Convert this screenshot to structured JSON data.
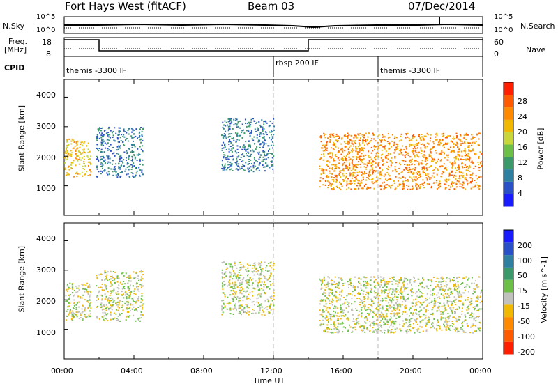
{
  "header": {
    "title": "Fort Hays West (fitACF)",
    "beam": "Beam 03",
    "date": "07/Dec/2014"
  },
  "summary": {
    "nsky_label": "N.Sky",
    "nsearch_label": "N.Search",
    "freq_label_1": "Freq.",
    "freq_label_2": "[MHz]",
    "nave_label": "Nave",
    "cpid_label": "CPID",
    "left_ticks_top": [
      "10^5",
      "10^0"
    ],
    "right_ticks_top": [
      "10^5",
      "10^0"
    ],
    "left_ticks_freq": [
      "18",
      "8"
    ],
    "right_ticks_nave": [
      "60",
      "0"
    ],
    "cpid_segments": [
      {
        "start_hour": 0,
        "label": "themis -3300 IF"
      },
      {
        "start_hour": 12,
        "label": "rbsp 200 IF"
      },
      {
        "start_hour": 18,
        "label": "themis -3300 IF"
      }
    ]
  },
  "chart_data": [
    {
      "type": "heatmap",
      "panel": "power",
      "ylabel": "Slant Range [km]",
      "yticks": [
        "1000",
        "2000",
        "3000",
        "4000"
      ],
      "ylim": [
        0,
        4600
      ],
      "xlim": [
        0,
        24
      ],
      "colorbar_label": "Power [dB]",
      "colorbar_ticks": [
        "28",
        "24",
        "20",
        "16",
        "12",
        "8",
        "4"
      ],
      "colors": [
        "#1a1aff",
        "#2a50c8",
        "#2e7fa0",
        "#3c9a6a",
        "#6cc048",
        "#c8d63a",
        "#f0b800",
        "#ff8a00",
        "#ff5a00",
        "#ff1e00"
      ],
      "regions": [
        {
          "x": [
            0.0,
            1.5
          ],
          "y": [
            1300,
            2600
          ],
          "level": 6
        },
        {
          "x": [
            1.8,
            4.5
          ],
          "y": [
            1300,
            3000
          ],
          "level": 2
        },
        {
          "x": [
            9.0,
            12.0
          ],
          "y": [
            1500,
            3300
          ],
          "level": 2
        },
        {
          "x": [
            14.6,
            23.9
          ],
          "y": [
            900,
            2800
          ],
          "level": 7
        }
      ]
    },
    {
      "type": "heatmap",
      "panel": "velocity",
      "ylabel": "Slant Range [km]",
      "yticks": [
        "1000",
        "2000",
        "3000",
        "4000"
      ],
      "ylim": [
        0,
        4600
      ],
      "xlim": [
        0,
        24
      ],
      "colorbar_label": "Velocity [m s^-1]",
      "colorbar_ticks": [
        "200",
        "100",
        "50",
        "15",
        "-15",
        "-50",
        "-100",
        "-200"
      ],
      "colors": [
        "#1a1aff",
        "#2a50c8",
        "#2e7fa0",
        "#3c9a6a",
        "#6cc048",
        "#c0c0bc",
        "#f0b800",
        "#ff8a00",
        "#ff5a00",
        "#ff1e00"
      ],
      "regions": [
        {
          "x": [
            0.0,
            1.5
          ],
          "y": [
            1300,
            2600
          ],
          "level": 5
        },
        {
          "x": [
            1.8,
            4.5
          ],
          "y": [
            1300,
            3000
          ],
          "level": 5
        },
        {
          "x": [
            9.0,
            12.0
          ],
          "y": [
            1500,
            3300
          ],
          "level": 5
        },
        {
          "x": [
            14.6,
            23.9
          ],
          "y": [
            900,
            2800
          ],
          "level": 5
        }
      ]
    }
  ],
  "xaxis": {
    "ticks": [
      "00:00",
      "04:00",
      "08:00",
      "12:00",
      "16:00",
      "20:00",
      "00:00"
    ],
    "label": "Time UT"
  }
}
